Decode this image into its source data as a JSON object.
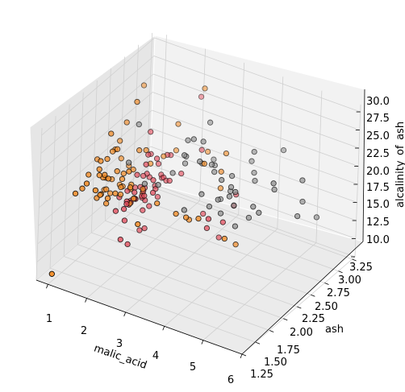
{
  "chart_data": {
    "type": "scatter3d",
    "xlabel": "malic_acid",
    "ylabel": "ash",
    "zlabel": "alcalinity_of_ash",
    "x_ticks": [
      "1",
      "2",
      "3",
      "4",
      "5",
      "6"
    ],
    "y_ticks": [
      "1.25",
      "1.50",
      "1.75",
      "2.00",
      "2.25",
      "2.50",
      "2.75",
      "3.00",
      "3.25"
    ],
    "z_ticks": [
      "10.0",
      "12.5",
      "15.0",
      "17.5",
      "20.0",
      "22.5",
      "25.0",
      "27.5",
      "30.0"
    ],
    "xlim": [
      0.7,
      6.0
    ],
    "ylim": [
      1.25,
      3.3
    ],
    "zlim": [
      10.0,
      31.0
    ],
    "grid": true,
    "colors": {
      "class_0": "#e34a5a",
      "class_1": "#f28e2b",
      "class_2": "#8c8c8c"
    },
    "series": [
      {
        "points": [
          [
            1.71,
            2.43,
            15.6
          ],
          [
            1.78,
            2.14,
            11.2
          ],
          [
            2.36,
            2.67,
            18.6
          ],
          [
            1.95,
            2.5,
            16.8
          ],
          [
            2.59,
            2.87,
            21.0
          ],
          [
            1.76,
            2.45,
            15.2
          ],
          [
            1.87,
            2.45,
            14.6
          ],
          [
            2.15,
            2.61,
            17.6
          ],
          [
            1.64,
            2.17,
            14.0
          ],
          [
            1.35,
            2.27,
            16.0
          ],
          [
            2.16,
            2.3,
            18.0
          ],
          [
            1.48,
            2.32,
            16.8
          ],
          [
            1.73,
            2.41,
            16.0
          ],
          [
            1.73,
            2.39,
            11.4
          ],
          [
            1.87,
            2.38,
            12.0
          ],
          [
            1.81,
            2.7,
            17.2
          ],
          [
            1.92,
            2.72,
            20.0
          ],
          [
            1.57,
            2.62,
            20.0
          ],
          [
            1.59,
            2.48,
            16.5
          ],
          [
            3.1,
            2.56,
            15.2
          ],
          [
            1.63,
            2.28,
            16.0
          ],
          [
            3.8,
            2.65,
            18.6
          ],
          [
            1.86,
            2.36,
            16.6
          ],
          [
            1.6,
            2.52,
            17.8
          ],
          [
            1.81,
            2.61,
            20.0
          ],
          [
            2.05,
            3.22,
            25.0
          ],
          [
            1.77,
            2.62,
            16.1
          ],
          [
            1.72,
            2.14,
            17.0
          ],
          [
            1.9,
            2.8,
            19.4
          ],
          [
            1.68,
            2.21,
            16.0
          ],
          [
            1.5,
            2.7,
            22.5
          ],
          [
            1.66,
            2.36,
            19.1
          ],
          [
            1.83,
            2.36,
            17.2
          ],
          [
            1.53,
            2.7,
            19.5
          ],
          [
            1.8,
            2.65,
            19.0
          ],
          [
            1.81,
            2.41,
            20.5
          ],
          [
            1.64,
            2.84,
            15.5
          ],
          [
            1.65,
            2.55,
            18.0
          ],
          [
            1.5,
            2.1,
            15.5
          ],
          [
            3.59,
            2.51,
            13.2
          ],
          [
            1.71,
            2.31,
            16.2
          ],
          [
            3.84,
            2.12,
            18.8
          ],
          [
            1.89,
            2.59,
            15.0
          ],
          [
            3.98,
            2.29,
            17.5
          ],
          [
            1.77,
            2.1,
            17.0
          ],
          [
            4.04,
            2.44,
            18.9
          ],
          [
            3.59,
            2.28,
            16.0
          ],
          [
            1.68,
            2.12,
            16.0
          ],
          [
            2.02,
            2.4,
            18.8
          ],
          [
            1.73,
            2.27,
            17.4
          ],
          [
            1.73,
            2.04,
            12.4
          ],
          [
            1.65,
            2.6,
            17.2
          ],
          [
            1.75,
            2.42,
            14.0
          ],
          [
            1.9,
            2.68,
            17.1
          ],
          [
            1.67,
            2.25,
            16.0
          ],
          [
            1.73,
            2.46,
            16.8
          ],
          [
            1.7,
            2.3,
            16.3
          ],
          [
            1.97,
            2.68,
            16.8
          ],
          [
            1.43,
            2.5,
            16.0
          ]
        ]
      },
      {
        "points": [
          [
            0.94,
            1.36,
            10.6
          ],
          [
            1.1,
            2.28,
            16.0
          ],
          [
            1.36,
            2.02,
            16.8
          ],
          [
            1.25,
            1.92,
            18.0
          ],
          [
            1.13,
            2.16,
            19.0
          ],
          [
            1.01,
            2.53,
            19.0
          ],
          [
            1.17,
            2.56,
            18.1
          ],
          [
            2.08,
            2.0,
            19.0
          ],
          [
            1.01,
            1.82,
            19.5
          ],
          [
            1.61,
            2.0,
            18.8
          ],
          [
            2.68,
            2.0,
            19.5
          ],
          [
            1.61,
            2.42,
            22.0
          ],
          [
            3.43,
            2.0,
            19.0
          ],
          [
            0.92,
            2.3,
            16.0
          ],
          [
            1.25,
            2.0,
            18.0
          ],
          [
            1.24,
            2.1,
            18.0
          ],
          [
            4.43,
            2.0,
            18.0
          ],
          [
            1.19,
            2.19,
            25.0
          ],
          [
            1.53,
            1.92,
            18.5
          ],
          [
            1.8,
            2.5,
            20.0
          ],
          [
            0.99,
            1.71,
            19.5
          ],
          [
            1.09,
            2.46,
            16.0
          ],
          [
            3.24,
            2.2,
            17.0
          ],
          [
            1.73,
            2.19,
            16.4
          ],
          [
            1.67,
            2.25,
            18.5
          ],
          [
            2.06,
            2.78,
            20.5
          ],
          [
            1.15,
            2.26,
            22.0
          ],
          [
            1.47,
            1.82,
            19.5
          ],
          [
            1.61,
            2.32,
            20.0
          ],
          [
            1.51,
            2.42,
            28.5
          ],
          [
            1.72,
            1.78,
            22.5
          ],
          [
            1.09,
            2.55,
            24.0
          ],
          [
            1.21,
            2.12,
            22.0
          ],
          [
            1.5,
            2.1,
            21.0
          ],
          [
            1.13,
            2.28,
            18.0
          ],
          [
            1.21,
            2.0,
            22.5
          ],
          [
            1.28,
            1.7,
            21.5
          ],
          [
            1.21,
            1.98,
            21.5
          ],
          [
            1.23,
            2.04,
            20.0
          ],
          [
            2.06,
            2.8,
            24.0
          ],
          [
            0.99,
            2.92,
            26.5
          ],
          [
            1.0,
            2.5,
            21.6
          ],
          [
            1.35,
            1.98,
            21.0
          ],
          [
            3.17,
            2.0,
            19.0
          ],
          [
            1.19,
            2.32,
            22.0
          ],
          [
            2.55,
            1.75,
            18.0
          ],
          [
            0.98,
            1.95,
            20.5
          ],
          [
            1.53,
            2.34,
            17.0
          ],
          [
            1.19,
            2.0,
            20.5
          ],
          [
            3.55,
            2.62,
            24.0
          ],
          [
            0.74,
            2.28,
            20.0
          ],
          [
            1.08,
            2.36,
            21.5
          ],
          [
            1.61,
            2.1,
            19.0
          ],
          [
            2.08,
            1.93,
            21.0
          ],
          [
            1.51,
            1.7,
            21.0
          ],
          [
            1.61,
            2.12,
            20.0
          ],
          [
            1.33,
            2.34,
            17.0
          ],
          [
            1.61,
            2.1,
            18.0
          ],
          [
            3.59,
            2.51,
            20.0
          ],
          [
            3.55,
            2.54,
            22.0
          ],
          [
            2.46,
            2.98,
            28.5
          ],
          [
            1.73,
            2.46,
            22.0
          ],
          [
            2.81,
            2.82,
            21.5
          ],
          [
            4.31,
            2.3,
            15.0
          ],
          [
            1.9,
            2.3,
            18.0
          ],
          [
            1.88,
            2.68,
            20.0
          ],
          [
            1.68,
            2.46,
            16.0
          ],
          [
            3.83,
            1.94,
            20.0
          ],
          [
            1.87,
            2.05,
            22.0
          ],
          [
            3.37,
            2.35,
            24.0
          ],
          [
            1.52,
            2.21,
            20.0
          ]
        ]
      },
      {
        "points": [
          [
            1.53,
            2.29,
            21.0
          ],
          [
            1.28,
            2.64,
            23.5
          ],
          [
            2.31,
            2.28,
            19.5
          ],
          [
            3.9,
            2.3,
            18.5
          ],
          [
            4.43,
            2.44,
            18.0
          ],
          [
            3.43,
            2.5,
            22.0
          ],
          [
            4.72,
            2.3,
            21.0
          ],
          [
            3.3,
            2.54,
            22.5
          ],
          [
            3.88,
            2.31,
            23.0
          ],
          [
            3.24,
            2.36,
            24.0
          ],
          [
            5.04,
            2.45,
            23.0
          ],
          [
            4.17,
            2.7,
            22.0
          ],
          [
            4.6,
            2.92,
            24.5
          ],
          [
            4.95,
            2.24,
            21.0
          ],
          [
            4.12,
            2.38,
            19.5
          ],
          [
            2.81,
            2.55,
            25.0
          ],
          [
            2.83,
            2.83,
            25.5
          ],
          [
            3.37,
            2.32,
            20.0
          ],
          [
            3.3,
            2.6,
            22.0
          ],
          [
            4.28,
            2.64,
            21.5
          ],
          [
            2.96,
            2.62,
            24.5
          ],
          [
            3.91,
            2.48,
            22.5
          ],
          [
            3.83,
            2.52,
            20.0
          ],
          [
            5.65,
            2.52,
            25.0
          ],
          [
            2.59,
            2.58,
            22.0
          ],
          [
            3.55,
            2.34,
            18.5
          ],
          [
            5.8,
            2.7,
            19.0
          ],
          [
            2.57,
            2.58,
            21.0
          ],
          [
            3.45,
            2.62,
            17.5
          ],
          [
            5.51,
            2.64,
            21.0
          ],
          [
            2.86,
            2.9,
            20.0
          ],
          [
            3.98,
            2.42,
            21.5
          ],
          [
            3.24,
            2.1,
            19.0
          ],
          [
            4.1,
            2.74,
            24.5
          ],
          [
            1.97,
            2.28,
            19.0
          ],
          [
            5.19,
            2.32,
            25.0
          ],
          [
            2.68,
            2.48,
            23.0
          ],
          [
            3.03,
            2.56,
            22.0
          ],
          [
            3.71,
            2.38,
            19.5
          ],
          [
            2.4,
            2.48,
            20.0
          ],
          [
            4.0,
            2.38,
            20.5
          ],
          [
            4.36,
            2.24,
            18.0
          ],
          [
            3.88,
            2.86,
            22.0
          ],
          [
            5.65,
            2.45,
            20.5
          ],
          [
            4.31,
            2.26,
            22.5
          ],
          [
            2.43,
            2.72,
            23.0
          ]
        ]
      }
    ]
  }
}
